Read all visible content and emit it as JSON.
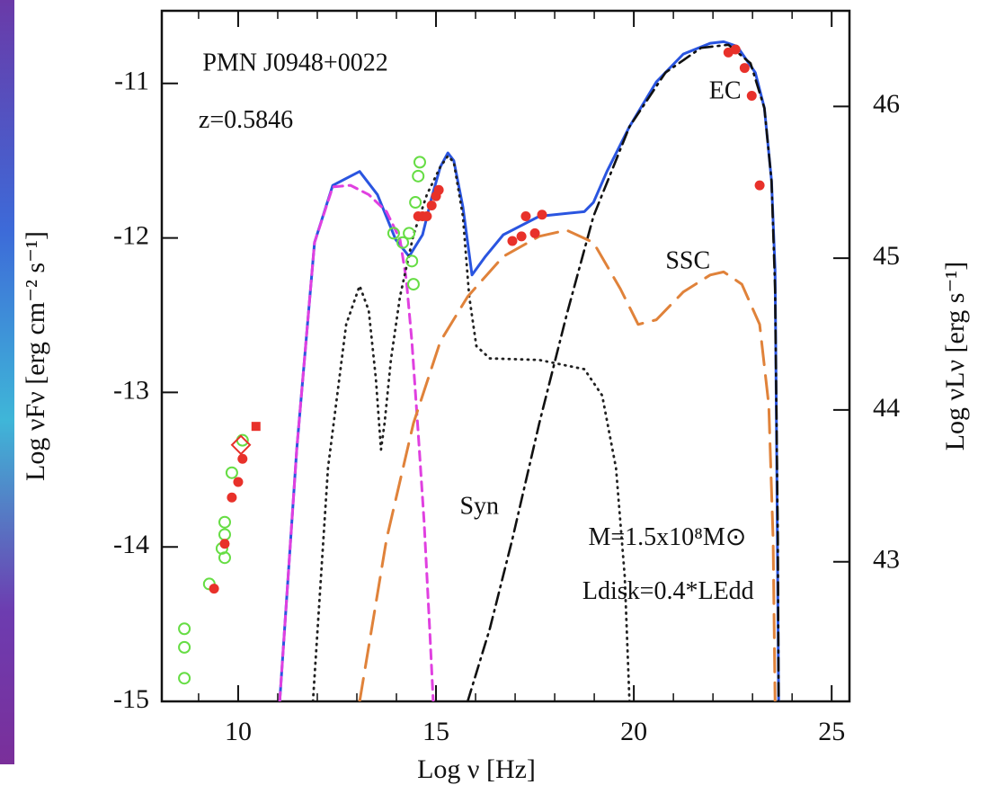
{
  "chart_data": {
    "type": "line",
    "xlabel": "Log ν  [Hz]",
    "ylabel": "Log νFν  [erg cm⁻² s⁻¹]",
    "y2label": "Log νLν  [erg s⁻¹]",
    "xlim": [
      8.07,
      25.45
    ],
    "ylim": [
      -15,
      -10.53
    ],
    "y2lim": [
      42.08,
      46.63
    ],
    "xticks": [
      10,
      15,
      20,
      25
    ],
    "xminorticks": [
      9,
      11,
      12,
      13,
      14,
      16,
      17,
      18,
      19,
      21,
      22,
      23,
      24
    ],
    "yticks": [
      -15,
      -14,
      -13,
      -12,
      -11
    ],
    "y2ticks": [
      43,
      44,
      45,
      46
    ],
    "annotations": [
      {
        "text": "PMN J0948+0022",
        "x": 9.1,
        "y": -10.88,
        "color": "#111111"
      },
      {
        "text": "z=0.5846",
        "x": 9.0,
        "y": -11.25,
        "color": "#111111"
      },
      {
        "text": "EC",
        "x": 21.9,
        "y": -11.06,
        "color": "#111111"
      },
      {
        "text": "SSC",
        "x": 20.8,
        "y": -12.16,
        "color": "#e0823a"
      },
      {
        "text": "Syn",
        "x": 15.6,
        "y": -13.75,
        "color": "#e040e0"
      },
      {
        "text": "M=1.5x10⁸M⊙",
        "x": 18.85,
        "y": -13.95,
        "color": "#111111"
      },
      {
        "text": "Ldisk=0.4*LEdd",
        "x": 18.7,
        "y": -14.3,
        "color": "#111111"
      }
    ],
    "series": [
      {
        "color": "#2a55e0",
        "style": "solid",
        "x": [
          11.05,
          11.48,
          11.93,
          12.39,
          13.07,
          13.52,
          13.98,
          14.32,
          14.66,
          14.89,
          15.11,
          15.3,
          15.45,
          15.68,
          15.91,
          16.25,
          16.7,
          17.61,
          18.75,
          18.98,
          19.32,
          19.89,
          20.57,
          21.25,
          21.93,
          22.27,
          22.61,
          23.07,
          23.3,
          23.48,
          23.57,
          23.61,
          23.66
        ],
        "values": [
          -15,
          -13.37,
          -12.03,
          -11.66,
          -11.57,
          -11.72,
          -12.01,
          -12.12,
          -11.98,
          -11.74,
          -11.54,
          -11.45,
          -11.5,
          -11.8,
          -12.24,
          -12.12,
          -11.98,
          -11.86,
          -11.83,
          -11.77,
          -11.57,
          -11.28,
          -10.99,
          -10.81,
          -10.74,
          -10.73,
          -10.76,
          -10.93,
          -11.16,
          -11.63,
          -12.21,
          -13.37,
          -15
        ]
      },
      {
        "color": "#e040e0",
        "style": "dashed",
        "x": [
          11.05,
          11.48,
          11.93,
          12.39,
          12.84,
          13.3,
          13.75,
          14.09,
          14.25,
          14.39,
          14.55,
          14.7,
          14.84,
          14.93
        ],
        "values": [
          -15,
          -13.37,
          -12.03,
          -11.67,
          -11.66,
          -11.72,
          -11.83,
          -12.01,
          -12.27,
          -12.67,
          -13.26,
          -13.84,
          -14.53,
          -15
        ]
      },
      {
        "color": "#222222",
        "style": "dotted",
        "x": [
          11.89,
          12.27,
          12.73,
          13.07,
          13.3,
          13.48,
          13.61,
          13.7,
          13.86,
          14.09,
          14.43,
          14.77,
          15.11,
          15.3,
          15.45,
          15.68,
          15.84,
          16.02,
          16.36,
          17.61,
          18.75,
          19.2,
          19.55,
          19.77,
          19.89
        ],
        "values": [
          -15,
          -13.49,
          -12.56,
          -12.31,
          -12.47,
          -12.91,
          -13.37,
          -13.2,
          -12.79,
          -12.38,
          -11.98,
          -11.72,
          -11.54,
          -11.47,
          -11.51,
          -11.86,
          -12.38,
          -12.7,
          -12.78,
          -12.79,
          -12.85,
          -13.02,
          -13.49,
          -14.19,
          -15
        ]
      },
      {
        "color": "#111111",
        "style": "dashdot",
        "x": [
          15.8,
          16.36,
          16.93,
          17.61,
          18.3,
          18.98,
          19.89,
          20.8,
          21.7,
          22.39,
          22.95,
          23.3,
          23.48,
          23.57,
          23.64,
          23.66
        ],
        "values": [
          -15,
          -14.53,
          -13.95,
          -13.2,
          -12.5,
          -11.86,
          -11.28,
          -10.93,
          -10.77,
          -10.75,
          -10.87,
          -11.16,
          -11.63,
          -12.33,
          -13.95,
          -15
        ]
      },
      {
        "color": "#e0823a",
        "style": "longdash",
        "x": [
          13.07,
          13.75,
          14.43,
          15.11,
          15.8,
          16.7,
          17.61,
          18.3,
          18.98,
          19.66,
          20.11,
          20.57,
          21.25,
          21.93,
          22.27,
          22.73,
          23.18,
          23.41,
          23.52,
          23.57
        ],
        "values": [
          -15,
          -13.95,
          -13.2,
          -12.67,
          -12.38,
          -12.12,
          -11.99,
          -11.95,
          -12.03,
          -12.33,
          -12.56,
          -12.53,
          -12.35,
          -12.24,
          -12.22,
          -12.3,
          -12.56,
          -13.08,
          -13.95,
          -15
        ]
      },
      {
        "color": "#66dd44",
        "marker": "open-circle",
        "x": [
          8.64,
          8.64,
          8.64,
          9.27,
          9.59,
          9.66,
          9.66,
          9.66,
          9.84,
          10.11,
          13.93,
          14.16,
          14.32,
          14.39,
          14.43,
          14.48,
          14.55,
          14.59
        ],
        "values": [
          -14.85,
          -14.65,
          -14.53,
          -14.24,
          -14.01,
          -14.07,
          -13.92,
          -13.84,
          -13.52,
          -13.31,
          -11.97,
          -12.03,
          -11.97,
          -12.15,
          -12.3,
          -11.77,
          -11.6,
          -11.51
        ]
      },
      {
        "color": "#e8312a",
        "marker": "filled-circle",
        "x": [
          9.39,
          9.66,
          9.84,
          10.0,
          10.11,
          14.55,
          14.66,
          14.77,
          14.89,
          15.0,
          15.07,
          16.93,
          17.16,
          17.27,
          17.5,
          17.68,
          22.39,
          22.57,
          22.8,
          22.98,
          23.18
        ],
        "values": [
          -14.27,
          -13.98,
          -13.68,
          -13.58,
          -13.43,
          -11.86,
          -11.86,
          -11.86,
          -11.79,
          -11.73,
          -11.69,
          -12.02,
          -11.99,
          -11.86,
          -11.97,
          -11.85,
          -10.8,
          -10.78,
          -10.9,
          -11.08,
          -11.66
        ]
      },
      {
        "color": "#e8312a",
        "marker": "square",
        "x": [
          10.45
        ],
        "values": [
          -13.22
        ]
      },
      {
        "color": "#e8312a",
        "marker": "open-diamond",
        "x": [
          10.07
        ],
        "values": [
          -13.34
        ]
      }
    ]
  }
}
